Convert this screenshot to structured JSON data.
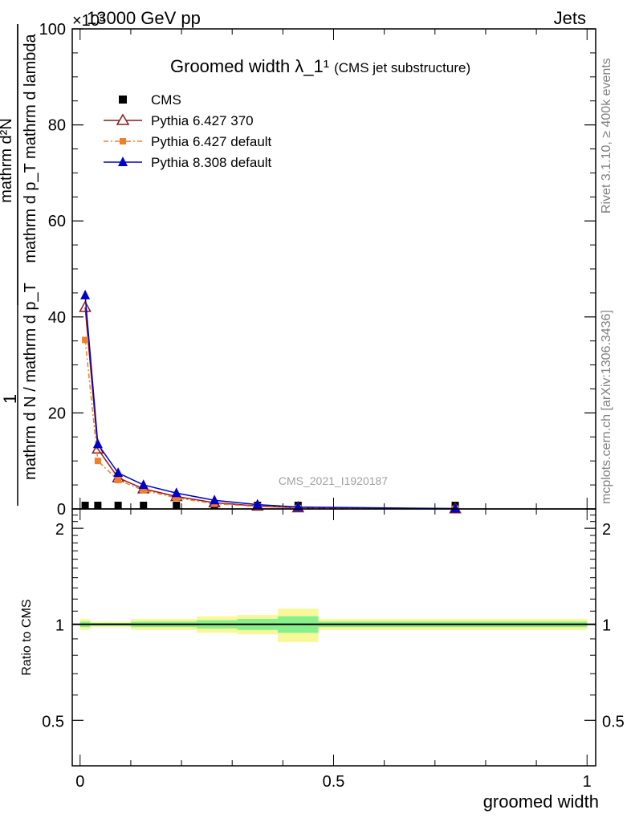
{
  "header": {
    "energy_label": "13000 GeV pp",
    "process_label": "Jets",
    "exponent_label": "×10³"
  },
  "side_text": {
    "rivet": "Rivet 3.1.10, ≥ 400k events",
    "mcplots": "mcplots.cern.ch [arXiv:1306.3436]"
  },
  "watermark": "CMS_2021_I1920187",
  "colors": {
    "cms": "#000000",
    "py6_370": "#8b1a1a",
    "py6_default": "#f07f2a",
    "py8_default": "#0000cc",
    "band_inner": "#88f08a",
    "band_outer": "#f8f89a"
  },
  "chart_data": [
    {
      "type": "line",
      "title": "Groomed width λ_1¹",
      "subtitle": "(CMS jet substructure)",
      "ylabel_fraction_numerator": "1",
      "ylabel_fraction_denominator": "mathrm d N / mathrm d p_T",
      "ylabel_derivative_top": "mathrm d²N",
      "ylabel_derivative_bottom": "mathrm d p_T mathrm d lambda",
      "xlim": [
        0,
        1
      ],
      "ylim": [
        0,
        100
      ],
      "y_scale_factor": 1000,
      "grid": false,
      "legend_position": "top-left",
      "yticks": [
        0,
        20,
        40,
        60,
        80,
        100
      ],
      "ytick_labels": [
        "0",
        "20",
        "40",
        "60",
        "80",
        "100"
      ],
      "series": [
        {
          "name": "CMS",
          "marker": "square",
          "x": [
            0.01,
            0.035,
            0.075,
            0.125,
            0.19,
            0.265,
            0.35,
            0.43,
            0.74
          ],
          "y": [
            0.0,
            0.0,
            0.0,
            0.0,
            0.0,
            0.0,
            0.0,
            0.0,
            0.0
          ]
        },
        {
          "name": "Pythia 6.427 370",
          "marker": "open-triangle",
          "x": [
            0.01,
            0.035,
            0.075,
            0.125,
            0.19,
            0.265,
            0.35,
            0.43,
            0.74
          ],
          "y": [
            42.0,
            12.5,
            6.5,
            4.2,
            2.6,
            1.3,
            0.6,
            0.25,
            0.05
          ]
        },
        {
          "name": "Pythia 6.427 default",
          "marker": "filled-square",
          "x": [
            0.01,
            0.035,
            0.075,
            0.125,
            0.19,
            0.265,
            0.35,
            0.43,
            0.74
          ],
          "y": [
            35.2,
            10.0,
            6.0,
            3.9,
            2.3,
            1.1,
            0.5,
            0.2,
            0.04
          ]
        },
        {
          "name": "Pythia 8.308 default",
          "marker": "filled-triangle",
          "x": [
            0.01,
            0.035,
            0.075,
            0.125,
            0.19,
            0.265,
            0.35,
            0.43,
            0.74
          ],
          "y": [
            44.5,
            13.5,
            7.5,
            5.0,
            3.3,
            1.8,
            0.9,
            0.4,
            0.08
          ]
        }
      ]
    },
    {
      "type": "line",
      "xlabel": "groomed width",
      "ylabel": "Ratio to CMS",
      "xlim": [
        0,
        1
      ],
      "ylim": [
        0.36,
        2.3
      ],
      "y_scale": "log",
      "grid": false,
      "xticks": [
        0,
        0.5,
        1
      ],
      "xtick_labels": [
        "0",
        "0.5",
        "1"
      ],
      "yticks": [
        0.5,
        1,
        2
      ],
      "ytick_labels": [
        "0.5",
        "1",
        "2"
      ],
      "bins": [
        {
          "x0": 0.0,
          "x1": 0.02,
          "inner": 0.02,
          "outer": 0.04
        },
        {
          "x0": 0.02,
          "x1": 0.05,
          "inner": 0.01,
          "outer": 0.02
        },
        {
          "x0": 0.05,
          "x1": 0.1,
          "inner": 0.01,
          "outer": 0.02
        },
        {
          "x0": 0.1,
          "x1": 0.15,
          "inner": 0.02,
          "outer": 0.04
        },
        {
          "x0": 0.15,
          "x1": 0.23,
          "inner": 0.02,
          "outer": 0.04
        },
        {
          "x0": 0.23,
          "x1": 0.31,
          "inner": 0.03,
          "outer": 0.06
        },
        {
          "x0": 0.31,
          "x1": 0.39,
          "inner": 0.04,
          "outer": 0.07
        },
        {
          "x0": 0.39,
          "x1": 0.47,
          "inner": 0.06,
          "outer": 0.12
        },
        {
          "x0": 0.47,
          "x1": 1.0,
          "inner": 0.02,
          "outer": 0.04
        }
      ],
      "series": [
        {
          "name": "CMS",
          "y": [
            1,
            1,
            1,
            1,
            1,
            1,
            1,
            1,
            1
          ]
        }
      ]
    }
  ],
  "legend": [
    {
      "label": "CMS",
      "key": "cms"
    },
    {
      "label": "Pythia 6.427 370",
      "key": "py6_370"
    },
    {
      "label": "Pythia 6.427 default",
      "key": "py6_default"
    },
    {
      "label": "Pythia 8.308 default",
      "key": "py8_default"
    }
  ]
}
